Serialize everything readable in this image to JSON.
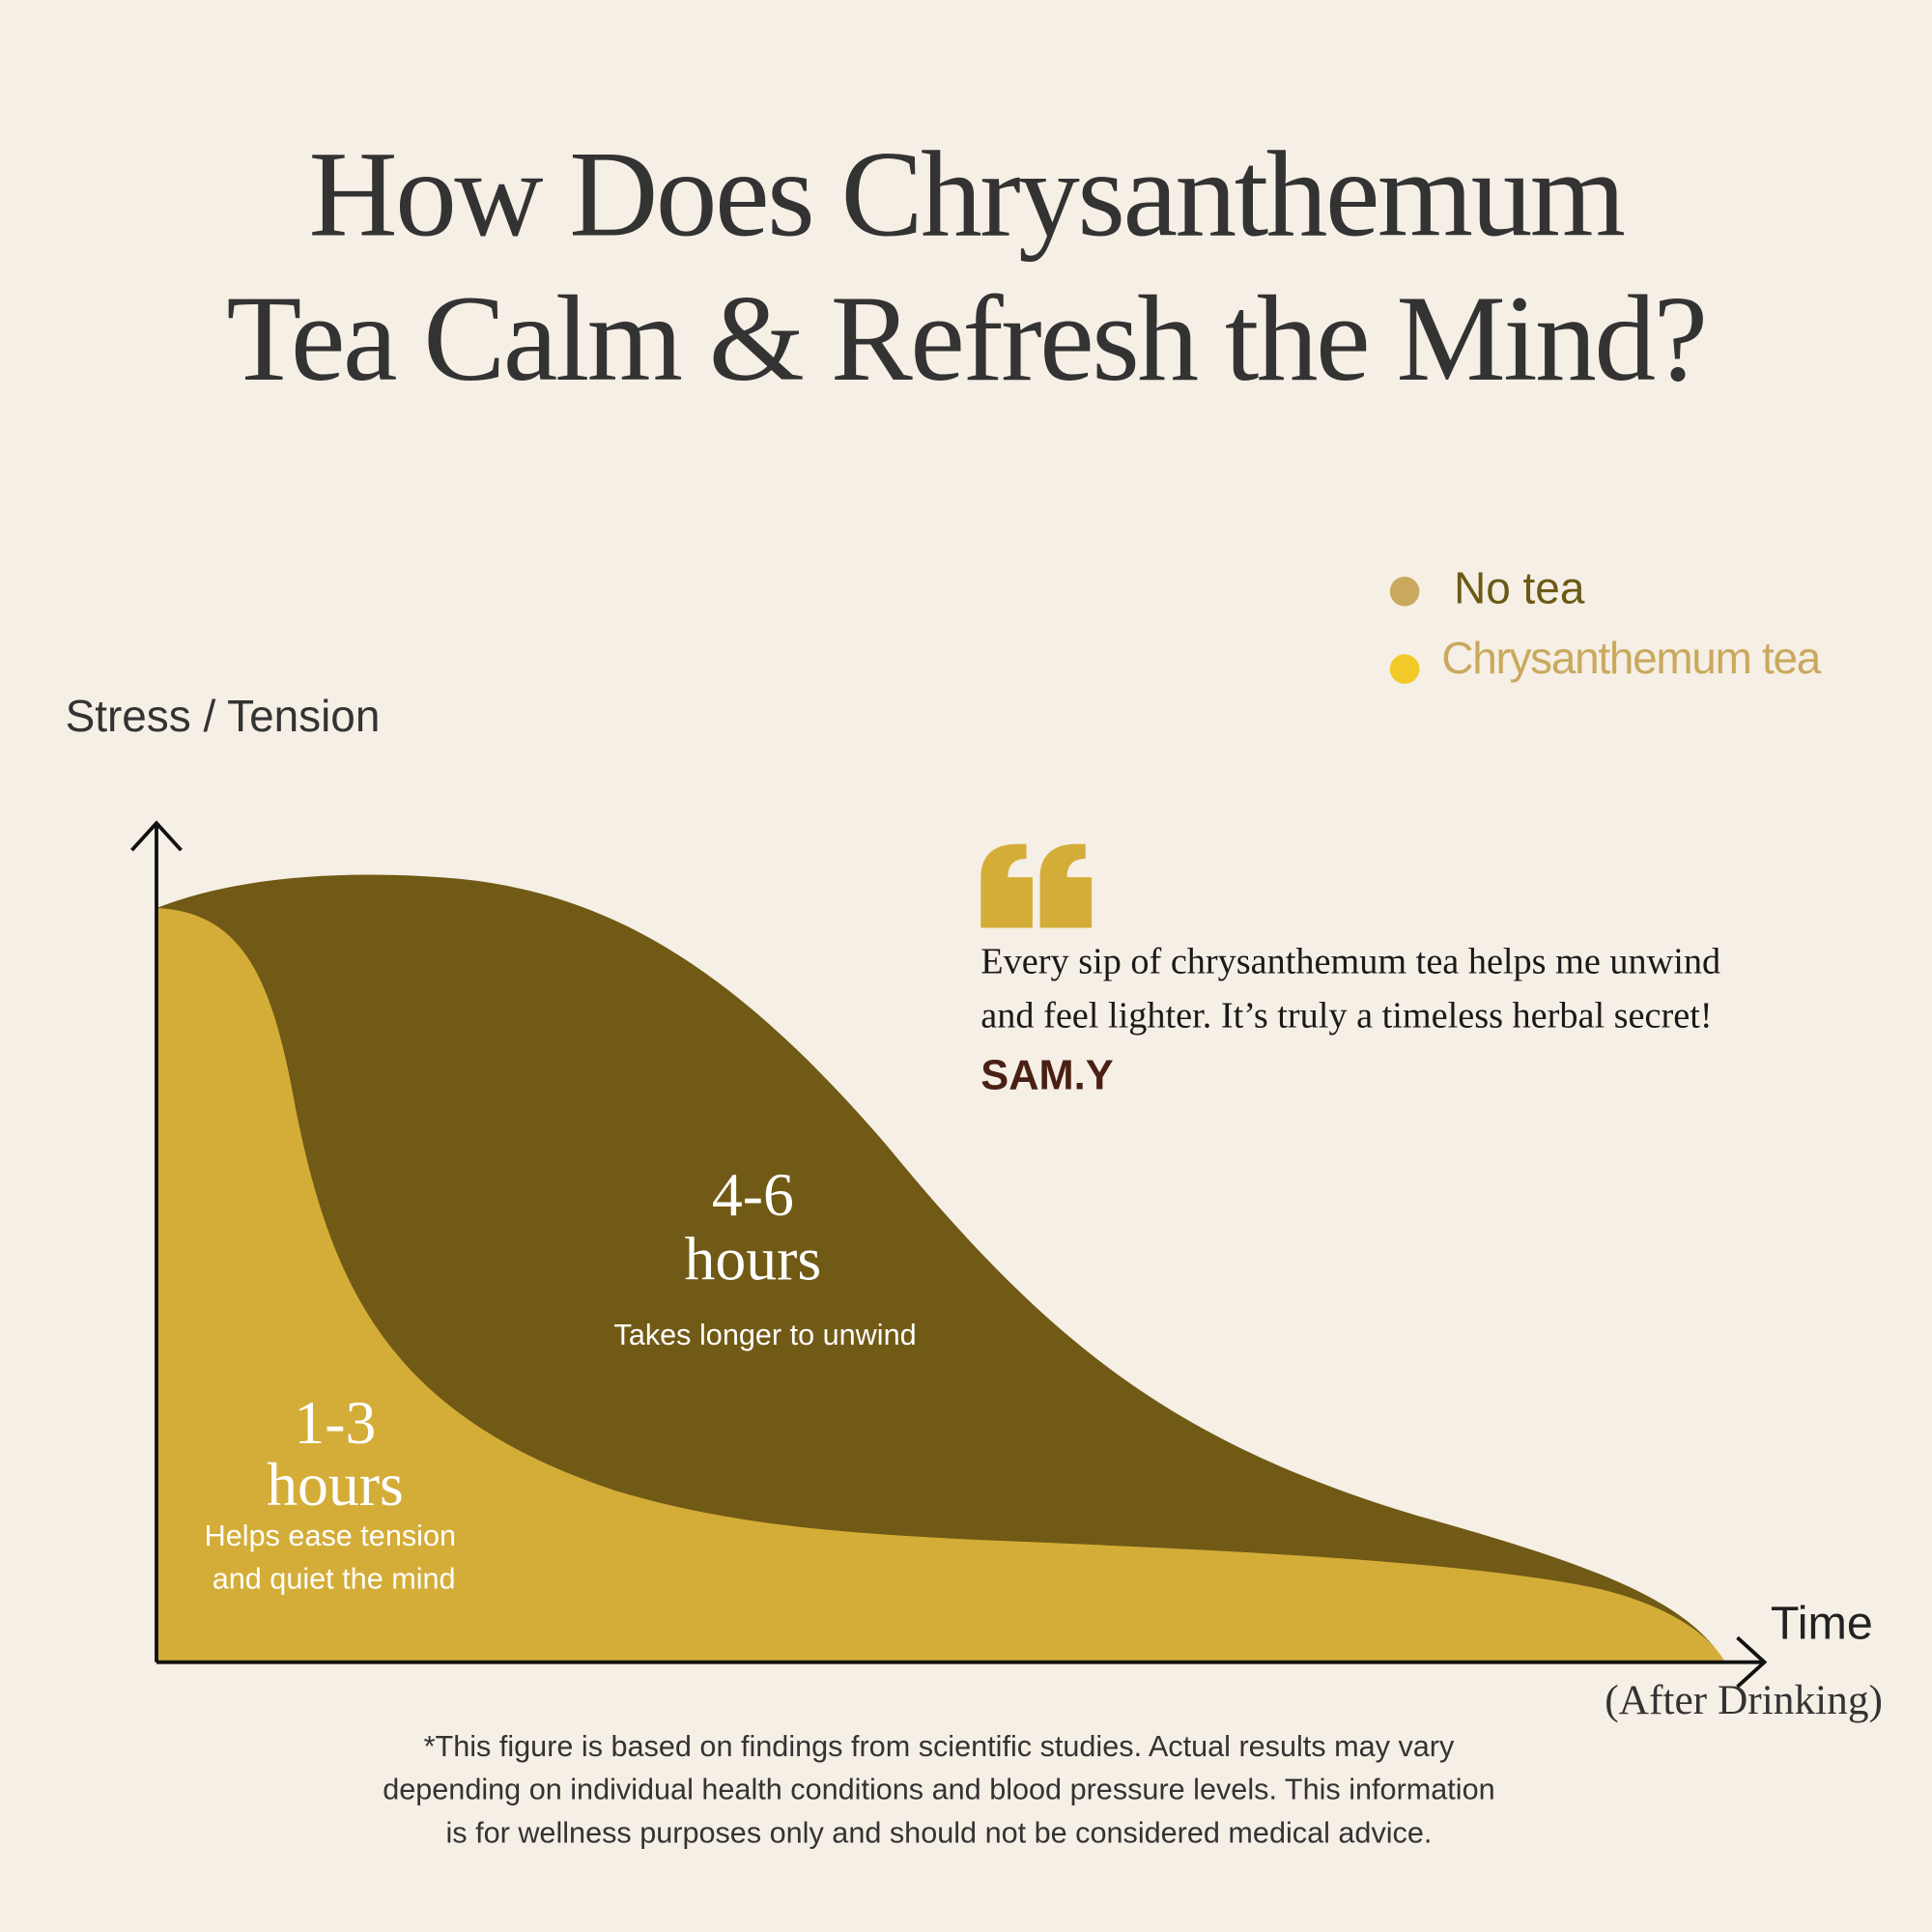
{
  "title": {
    "lines": [
      "How Does Chrysanthemum",
      "Tea Calm & Refresh the Mind?"
    ]
  },
  "legend": {
    "items": [
      {
        "label": "No tea"
      },
      {
        "label": "Chrysanthemum tea"
      }
    ]
  },
  "y_axis_label": "Stress / Tension",
  "x_axis_label": {
    "main": "Time",
    "sub": "(After Drinking)"
  },
  "annotations": [
    {
      "range": "4-6",
      "unit": "hours",
      "note": [
        "Takes longer to unwind"
      ]
    },
    {
      "range": "1-3",
      "unit": "hours",
      "note": [
        "Helps ease tension",
        "and quiet the mind"
      ]
    }
  ],
  "quote": {
    "lines": [
      "Every sip of chrysanthemum tea helps me unwind",
      "and feel lighter. It’s truly a timeless herbal secret!"
    ],
    "author": "SAM.Y"
  },
  "footnote": {
    "lines": [
      "*This figure is based on findings from scientific studies. Actual results may vary",
      "depending on individual health conditions and blood pressure levels. This information",
      "is for wellness purposes only and should not be considered medical advice."
    ]
  }
}
